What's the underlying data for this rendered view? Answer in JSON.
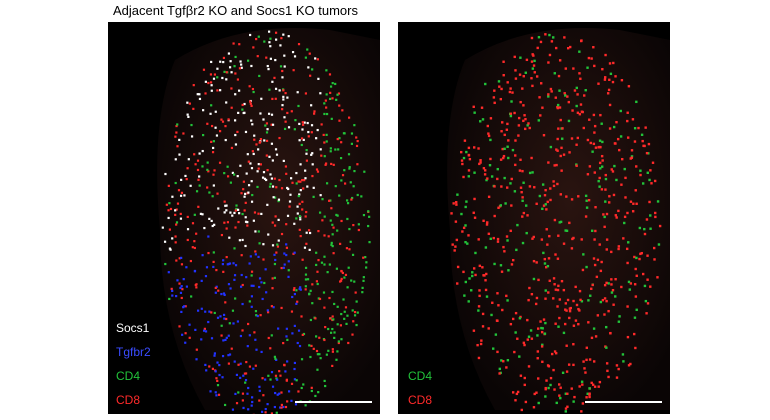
{
  "header": {
    "title": "Adjacent Tgfβr2 KO and Socs1 KO tumors"
  },
  "panels": [
    {
      "labels": [
        "Socs1",
        "Tgfbr2",
        "CD4",
        "CD8"
      ]
    },
    {
      "labels": [
        "CD4",
        "CD8"
      ]
    }
  ]
}
